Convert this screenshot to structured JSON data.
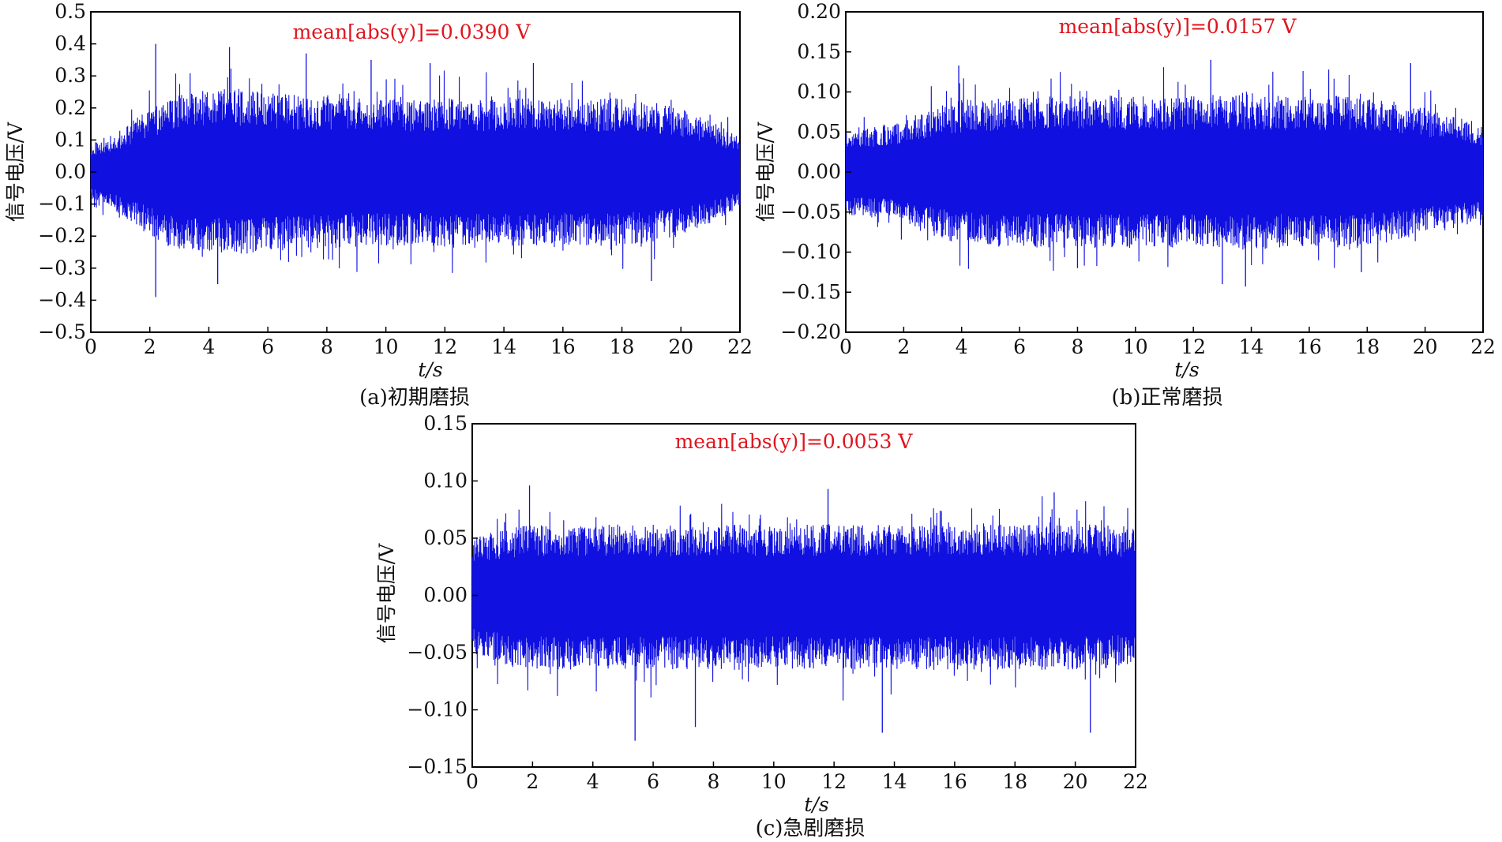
{
  "figure": {
    "captions": [
      "(a)初期磨损",
      "(b)正常磨损",
      "(c)急剧磨损"
    ]
  },
  "chart_data": [
    {
      "type": "line",
      "panel": "a",
      "caption": "(a)初期磨损",
      "annotation": "mean[abs(y)]=0.0390 V",
      "xlabel": "t/s",
      "ylabel": "信号电压/V",
      "xlim": [
        0,
        22
      ],
      "ylim": [
        -0.5,
        0.5
      ],
      "xticks": [
        "0",
        "2",
        "4",
        "6",
        "8",
        "10",
        "12",
        "14",
        "16",
        "18",
        "20",
        "22"
      ],
      "yticks": [
        "0.5",
        "0.4",
        "0.3",
        "0.2",
        "0.1",
        "0.0",
        "−0.1",
        "−0.2",
        "−0.3",
        "−0.4",
        "−0.5"
      ],
      "series_color": "#1010e0",
      "envelope_t": [
        0,
        1,
        2,
        3,
        4,
        5,
        6,
        7,
        8,
        9,
        10,
        11,
        12,
        13,
        14,
        15,
        16,
        17,
        18,
        19,
        20,
        21,
        22
      ],
      "envelope_upper": [
        0.09,
        0.13,
        0.2,
        0.24,
        0.26,
        0.26,
        0.25,
        0.24,
        0.24,
        0.23,
        0.23,
        0.23,
        0.23,
        0.23,
        0.23,
        0.23,
        0.23,
        0.23,
        0.23,
        0.22,
        0.2,
        0.16,
        0.11
      ],
      "envelope_lower": [
        -0.09,
        -0.13,
        -0.2,
        -0.24,
        -0.26,
        -0.26,
        -0.25,
        -0.24,
        -0.24,
        -0.23,
        -0.23,
        -0.23,
        -0.23,
        -0.23,
        -0.23,
        -0.23,
        -0.23,
        -0.23,
        -0.23,
        -0.22,
        -0.2,
        -0.16,
        -0.11
      ],
      "peaks": [
        {
          "t": 2.2,
          "y": 0.4
        },
        {
          "t": 2.2,
          "y": -0.39
        },
        {
          "t": 4.3,
          "y": -0.35
        },
        {
          "t": 4.7,
          "y": 0.39
        },
        {
          "t": 7.3,
          "y": 0.37
        },
        {
          "t": 9.5,
          "y": 0.35
        },
        {
          "t": 11.5,
          "y": 0.34
        },
        {
          "t": 15.0,
          "y": 0.34
        },
        {
          "t": 19.0,
          "y": -0.34
        }
      ]
    },
    {
      "type": "line",
      "panel": "b",
      "caption": "(b)正常磨损",
      "annotation": "mean[abs(y)]=0.0157 V",
      "xlabel": "t/s",
      "ylabel": "信号电压/V",
      "xlim": [
        0,
        22
      ],
      "ylim": [
        -0.2,
        0.2
      ],
      "xticks": [
        "0",
        "2",
        "4",
        "6",
        "8",
        "10",
        "12",
        "14",
        "16",
        "18",
        "20",
        "22"
      ],
      "yticks": [
        "0.20",
        "0.15",
        "0.10",
        "0.05",
        "0.00",
        "−0.05",
        "−0.10",
        "−0.15",
        "−0.20"
      ],
      "series_color": "#1010e0",
      "envelope_t": [
        0,
        1,
        2,
        3,
        4,
        5,
        6,
        7,
        8,
        9,
        10,
        11,
        12,
        13,
        14,
        15,
        16,
        17,
        18,
        19,
        20,
        21,
        22
      ],
      "envelope_upper": [
        0.055,
        0.057,
        0.065,
        0.08,
        0.09,
        0.093,
        0.095,
        0.095,
        0.095,
        0.095,
        0.095,
        0.095,
        0.095,
        0.097,
        0.097,
        0.095,
        0.095,
        0.095,
        0.092,
        0.087,
        0.08,
        0.07,
        0.06
      ],
      "envelope_lower": [
        -0.055,
        -0.057,
        -0.065,
        -0.08,
        -0.09,
        -0.093,
        -0.095,
        -0.095,
        -0.095,
        -0.095,
        -0.095,
        -0.095,
        -0.095,
        -0.097,
        -0.097,
        -0.095,
        -0.095,
        -0.095,
        -0.092,
        -0.087,
        -0.08,
        -0.07,
        -0.06
      ],
      "peaks": [
        {
          "t": 3.9,
          "y": 0.133
        },
        {
          "t": 12.6,
          "y": 0.14
        },
        {
          "t": 13.8,
          "y": -0.143
        },
        {
          "t": 13.0,
          "y": -0.14
        },
        {
          "t": 19.5,
          "y": 0.136
        },
        {
          "t": 8.0,
          "y": -0.12
        },
        {
          "t": 17.8,
          "y": -0.125
        }
      ]
    },
    {
      "type": "line",
      "panel": "c",
      "caption": "(c)急剧磨损",
      "annotation": "mean[abs(y)]=0.0053 V",
      "xlabel": "t/s",
      "ylabel": "信号电压/V",
      "xlim": [
        0,
        22
      ],
      "ylim": [
        -0.15,
        0.15
      ],
      "xticks": [
        "0",
        "2",
        "4",
        "6",
        "8",
        "10",
        "12",
        "14",
        "16",
        "18",
        "20",
        "22"
      ],
      "yticks": [
        "0.15",
        "0.10",
        "0.05",
        "0.00",
        "−0.05",
        "−0.10",
        "−0.15"
      ],
      "series_color": "#1010e0",
      "envelope_t": [
        0,
        1,
        2,
        3,
        4,
        5,
        6,
        7,
        8,
        9,
        10,
        11,
        12,
        13,
        14,
        15,
        16,
        17,
        18,
        19,
        20,
        21,
        22
      ],
      "envelope_upper": [
        0.05,
        0.058,
        0.062,
        0.062,
        0.062,
        0.062,
        0.062,
        0.062,
        0.062,
        0.062,
        0.062,
        0.062,
        0.062,
        0.062,
        0.062,
        0.062,
        0.062,
        0.062,
        0.062,
        0.062,
        0.062,
        0.062,
        0.06
      ],
      "envelope_lower": [
        -0.05,
        -0.06,
        -0.065,
        -0.065,
        -0.065,
        -0.065,
        -0.065,
        -0.065,
        -0.065,
        -0.065,
        -0.065,
        -0.065,
        -0.065,
        -0.065,
        -0.065,
        -0.065,
        -0.065,
        -0.065,
        -0.065,
        -0.065,
        -0.065,
        -0.065,
        -0.06
      ],
      "peaks": [
        {
          "t": 1.9,
          "y": 0.096
        },
        {
          "t": 5.4,
          "y": -0.127
        },
        {
          "t": 11.8,
          "y": 0.093
        },
        {
          "t": 19.3,
          "y": 0.09
        },
        {
          "t": 20.5,
          "y": -0.12
        },
        {
          "t": 7.4,
          "y": -0.115
        },
        {
          "t": 13.6,
          "y": -0.12
        }
      ]
    }
  ]
}
